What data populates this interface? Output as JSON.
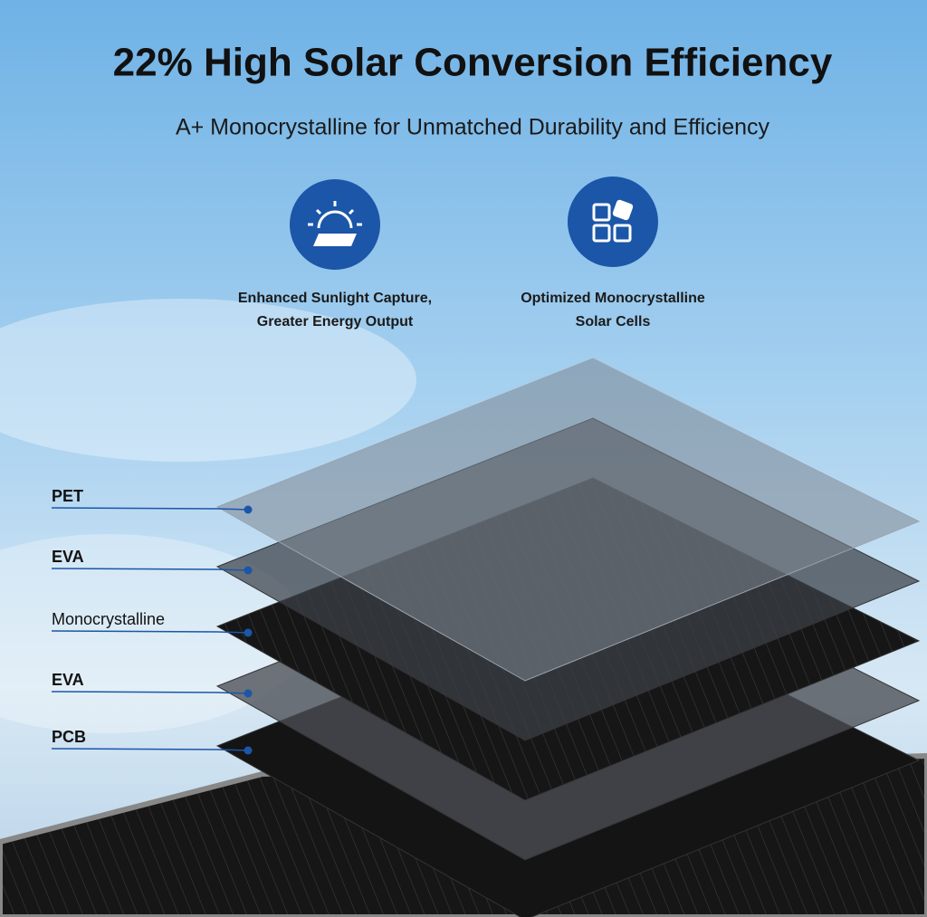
{
  "header": {
    "title": "22% High Solar Conversion Efficiency",
    "subtitle": "A+ Monocrystalline for Unmatched Durability and Efficiency"
  },
  "features": [
    {
      "lines": [
        "Enhanced Sunlight Capture,",
        "Greater Energy Output"
      ]
    },
    {
      "lines": [
        "Optimized Monocrystalline",
        "Solar Cells"
      ]
    }
  ],
  "layers": [
    "PET",
    "EVA",
    "Monocrystalline",
    "EVA",
    "PCB"
  ]
}
